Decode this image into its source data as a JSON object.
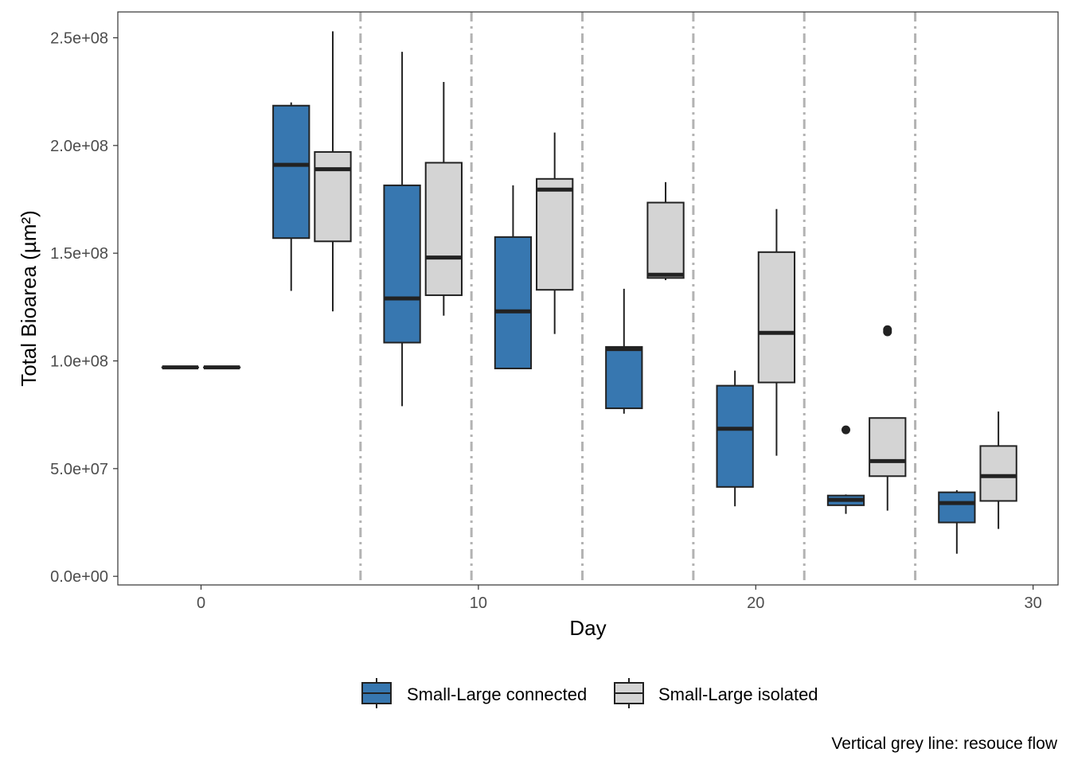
{
  "chart_data": {
    "type": "box",
    "xlabel": "Day",
    "ylabel": "Total Bioarea (µm²)",
    "caption": "Vertical grey line: resouce flow",
    "xlim": [
      -3,
      30.9
    ],
    "ylim": [
      -4000000,
      262000000
    ],
    "x_ticks": [
      0,
      10,
      20,
      30
    ],
    "y_ticks": [
      0,
      50000000,
      100000000,
      150000000,
      200000000,
      250000000
    ],
    "y_tick_labels": [
      "0.0e+00",
      "5.0e+07",
      "1.0e+08",
      "1.5e+08",
      "2.0e+08",
      "2.5e+08"
    ],
    "grid": false,
    "legend_position": "bottom",
    "resource_flow_days": [
      5.75,
      9.75,
      13.75,
      17.75,
      21.75,
      25.75
    ],
    "series": [
      {
        "name": "Small-Large connected",
        "color": "#3777b0",
        "boxes": [
          {
            "day": 0,
            "min": 97000000,
            "q1": 97000000,
            "median": 97000000,
            "q3": 97000000,
            "max": 97000000,
            "outliers": []
          },
          {
            "day": 4,
            "min": 132500000,
            "q1": 157000000,
            "median": 191000000,
            "q3": 218500000,
            "max": 220000000,
            "outliers": []
          },
          {
            "day": 8,
            "min": 79000000,
            "q1": 108500000,
            "median": 129000000,
            "q3": 181500000,
            "max": 243500000,
            "outliers": []
          },
          {
            "day": 12,
            "min": 96500000,
            "q1": 96500000,
            "median": 123000000,
            "q3": 157500000,
            "max": 181500000,
            "outliers": []
          },
          {
            "day": 16,
            "min": 75500000,
            "q1": 78000000,
            "median": 105500000,
            "q3": 106500000,
            "max": 133500000,
            "outliers": []
          },
          {
            "day": 20,
            "min": 32500000,
            "q1": 41500000,
            "median": 68500000,
            "q3": 88500000,
            "max": 95500000,
            "outliers": []
          },
          {
            "day": 24,
            "min": 29000000,
            "q1": 33000000,
            "median": 35500000,
            "q3": 37500000,
            "max": 38000000,
            "outliers": [
              68000000
            ]
          },
          {
            "day": 28,
            "min": 10500000,
            "q1": 25000000,
            "median": 34000000,
            "q3": 39000000,
            "max": 40000000,
            "outliers": []
          }
        ]
      },
      {
        "name": "Small-Large isolated",
        "color": "#d4d4d4",
        "boxes": [
          {
            "day": 0,
            "min": 97000000,
            "q1": 97000000,
            "median": 97000000,
            "q3": 97000000,
            "max": 97000000,
            "outliers": []
          },
          {
            "day": 4,
            "min": 123000000,
            "q1": 155500000,
            "median": 189000000,
            "q3": 197000000,
            "max": 253000000,
            "outliers": []
          },
          {
            "day": 8,
            "min": 121000000,
            "q1": 130500000,
            "median": 148000000,
            "q3": 192000000,
            "max": 229500000,
            "outliers": []
          },
          {
            "day": 12,
            "min": 112500000,
            "q1": 133000000,
            "median": 179500000,
            "q3": 184500000,
            "max": 206000000,
            "outliers": []
          },
          {
            "day": 16,
            "min": 137500000,
            "q1": 138500000,
            "median": 140000000,
            "q3": 173500000,
            "max": 183000000,
            "outliers": []
          },
          {
            "day": 20,
            "min": 56000000,
            "q1": 90000000,
            "median": 113000000,
            "q3": 150500000,
            "max": 170500000,
            "outliers": []
          },
          {
            "day": 24,
            "min": 30500000,
            "q1": 46500000,
            "median": 53500000,
            "q3": 73500000,
            "max": 73500000,
            "outliers": [
              113500000,
              114500000
            ]
          },
          {
            "day": 28,
            "min": 22000000,
            "q1": 35000000,
            "median": 46500000,
            "q3": 60500000,
            "max": 76500000,
            "outliers": []
          }
        ]
      }
    ]
  }
}
